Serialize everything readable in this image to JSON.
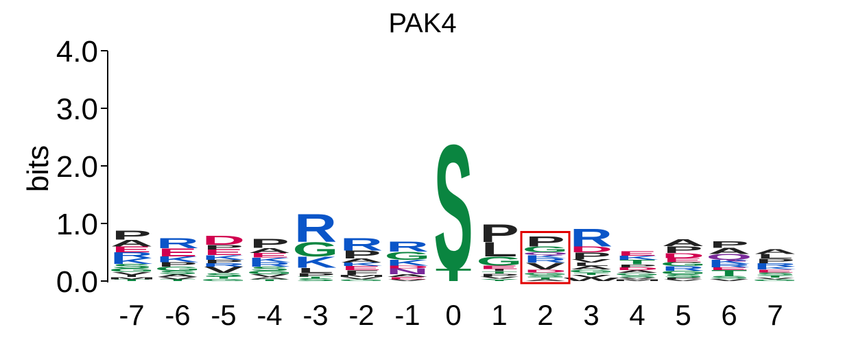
{
  "chart_data": {
    "type": "sequence-logo",
    "title": "PAK4",
    "ylabel": "bits",
    "ylim": [
      0,
      4.0
    ],
    "yticks": [
      "0.0",
      "1.0",
      "2.0",
      "3.0",
      "4.0"
    ],
    "positions": [
      "-7",
      "-6",
      "-5",
      "-4",
      "-3",
      "-2",
      "-1",
      "0",
      "1",
      "2",
      "3",
      "4",
      "5",
      "6",
      "7"
    ],
    "highlight_position": "2",
    "colors": {
      "P": "#222222",
      "A": "#222222",
      "L": "#222222",
      "V": "#222222",
      "I": "#222222",
      "M": "#222222",
      "F": "#222222",
      "W": "#222222",
      "R": "#0a55c8",
      "K": "#0a55c8",
      "H": "#0a55c8",
      "D": "#d1004f",
      "E": "#d1004f",
      "G": "#0a8540",
      "S": "#0a8540",
      "T": "#0a8540",
      "Y": "#0a8540",
      "C": "#0a8540",
      "N": "#7a2a9a",
      "Q": "#7a2a9a"
    },
    "stacks": [
      [
        [
          "T",
          0.03
        ],
        [
          "M",
          0.04
        ],
        [
          "I",
          0.04
        ],
        [
          "V",
          0.05
        ],
        [
          "G",
          0.06
        ],
        [
          "S",
          0.08
        ],
        [
          "K",
          0.1
        ],
        [
          "R",
          0.1
        ],
        [
          "E",
          0.1
        ],
        [
          "A",
          0.12
        ],
        [
          "P",
          0.16
        ]
      ],
      [
        [
          "T",
          0.03
        ],
        [
          "V",
          0.04
        ],
        [
          "A",
          0.05
        ],
        [
          "S",
          0.06
        ],
        [
          "G",
          0.07
        ],
        [
          "P",
          0.08
        ],
        [
          "K",
          0.1
        ],
        [
          "E",
          0.14
        ],
        [
          "R",
          0.18
        ]
      ],
      [
        [
          "G",
          0.04
        ],
        [
          "T",
          0.04
        ],
        [
          "S",
          0.06
        ],
        [
          "V",
          0.11
        ],
        [
          "R",
          0.06
        ],
        [
          "P",
          0.06
        ],
        [
          "K",
          0.08
        ],
        [
          "E",
          0.1
        ],
        [
          "P",
          0.08
        ],
        [
          "D",
          0.16
        ]
      ],
      [
        [
          "T",
          0.03
        ],
        [
          "A",
          0.04
        ],
        [
          "V",
          0.05
        ],
        [
          "G",
          0.06
        ],
        [
          "S",
          0.07
        ],
        [
          "R",
          0.08
        ],
        [
          "K",
          0.08
        ],
        [
          "E",
          0.08
        ],
        [
          "A",
          0.09
        ],
        [
          "P",
          0.16
        ]
      ],
      [
        [
          "S",
          0.05
        ],
        [
          "T",
          0.03
        ],
        [
          "P",
          0.06
        ],
        [
          "L",
          0.09
        ],
        [
          "K",
          0.2
        ],
        [
          "G",
          0.25
        ],
        [
          "R",
          0.5
        ]
      ],
      [
        [
          "G",
          0.03
        ],
        [
          "V",
          0.04
        ],
        [
          "M",
          0.04
        ],
        [
          "F",
          0.08
        ],
        [
          "E",
          0.07
        ],
        [
          "K",
          0.06
        ],
        [
          "A",
          0.07
        ],
        [
          "P",
          0.14
        ],
        [
          "R",
          0.22
        ]
      ],
      [
        [
          "V",
          0.03
        ],
        [
          "E",
          0.04
        ],
        [
          "A",
          0.05
        ],
        [
          "N",
          0.1
        ],
        [
          "D",
          0.05
        ],
        [
          "K",
          0.1
        ],
        [
          "G",
          0.14
        ],
        [
          "R",
          0.18
        ]
      ],
      [
        [
          "T",
          0.22
        ],
        [
          "S",
          2.22
        ]
      ],
      [
        [
          "Y",
          0.04
        ],
        [
          "V",
          0.04
        ],
        [
          "P",
          0.05
        ],
        [
          "T",
          0.04
        ],
        [
          "I",
          0.04
        ],
        [
          "E",
          0.06
        ],
        [
          "G",
          0.16
        ],
        [
          "L",
          0.25
        ],
        [
          "P",
          0.32
        ]
      ],
      [
        [
          "A",
          0.03
        ],
        [
          "T",
          0.04
        ],
        [
          "S",
          0.04
        ],
        [
          "G",
          0.04
        ],
        [
          "D",
          0.05
        ],
        [
          "V",
          0.12
        ],
        [
          "R",
          0.08
        ],
        [
          "K",
          0.05
        ],
        [
          "Q",
          0.05
        ],
        [
          "G",
          0.1
        ],
        [
          "P",
          0.18
        ]
      ],
      [
        [
          "W",
          0.06
        ],
        [
          "V",
          0.05
        ],
        [
          "T",
          0.04
        ],
        [
          "G",
          0.05
        ],
        [
          "A",
          0.06
        ],
        [
          "L",
          0.06
        ],
        [
          "V",
          0.06
        ],
        [
          "P",
          0.12
        ],
        [
          "D",
          0.1
        ],
        [
          "R",
          0.32
        ]
      ],
      [
        [
          "M",
          0.03
        ],
        [
          "V",
          0.03
        ],
        [
          "S",
          0.04
        ],
        [
          "G",
          0.04
        ],
        [
          "A",
          0.05
        ],
        [
          "D",
          0.05
        ],
        [
          "P",
          0.05
        ],
        [
          "T",
          0.08
        ],
        [
          "K",
          0.07
        ],
        [
          "E",
          0.08
        ]
      ],
      [
        [
          "V",
          0.03
        ],
        [
          "P",
          0.03
        ],
        [
          "S",
          0.06
        ],
        [
          "G",
          0.06
        ],
        [
          "R",
          0.08
        ],
        [
          "G",
          0.07
        ],
        [
          "E",
          0.07
        ],
        [
          "D",
          0.09
        ],
        [
          "P",
          0.12
        ],
        [
          "A",
          0.13
        ]
      ],
      [
        [
          "V",
          0.04
        ],
        [
          "S",
          0.05
        ],
        [
          "T",
          0.1
        ],
        [
          "E",
          0.05
        ],
        [
          "R",
          0.06
        ],
        [
          "K",
          0.07
        ],
        [
          "Q",
          0.1
        ],
        [
          "A",
          0.11
        ],
        [
          "P",
          0.12
        ]
      ],
      [
        [
          "G",
          0.03
        ],
        [
          "V",
          0.03
        ],
        [
          "T",
          0.04
        ],
        [
          "S",
          0.05
        ],
        [
          "E",
          0.05
        ],
        [
          "K",
          0.05
        ],
        [
          "R",
          0.06
        ],
        [
          "P",
          0.08
        ],
        [
          "L",
          0.08
        ],
        [
          "A",
          0.09
        ]
      ]
    ]
  }
}
